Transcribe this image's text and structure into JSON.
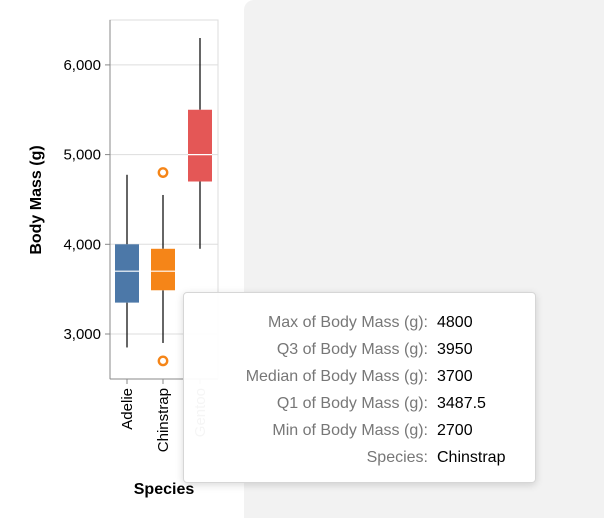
{
  "chart_data": {
    "type": "boxplot",
    "xlabel": "Species",
    "ylabel": "Body Mass (g)",
    "ylim": [
      2450,
      6450
    ],
    "yticks": [
      3000,
      4000,
      5000,
      6000
    ],
    "ytick_labels": [
      "3,000",
      "4,000",
      "5,000",
      "6,000"
    ],
    "grid": true,
    "categories": [
      "Adelie",
      "Chinstrap",
      "Gentoo"
    ],
    "boxes": [
      {
        "species": "Adelie",
        "color": "#4c78a8",
        "min": 2850,
        "q1": 3350,
        "median": 3700,
        "q3": 4000,
        "max": 4775,
        "outliers": []
      },
      {
        "species": "Chinstrap",
        "color": "#f58518",
        "min": 2700,
        "q1": 3487.5,
        "median": 3700,
        "q3": 3950,
        "max": 4800,
        "whisker_low": 2900,
        "whisker_high": 4550,
        "outliers": [
          2700,
          4800
        ]
      },
      {
        "species": "Gentoo",
        "color": "#e45756",
        "min": 3950,
        "q1": 4700,
        "median": 5000,
        "q3": 5500,
        "max": 6300,
        "outliers": []
      }
    ]
  },
  "tooltip": {
    "rows": [
      {
        "key": "Max of Body Mass (g):",
        "value": "4800"
      },
      {
        "key": "Q3 of Body Mass (g):",
        "value": "3950"
      },
      {
        "key": "Median of Body Mass (g):",
        "value": "3700"
      },
      {
        "key": "Q1 of Body Mass (g):",
        "value": "3487.5"
      },
      {
        "key": "Min of Body Mass (g):",
        "value": "2700"
      },
      {
        "key": "Species:",
        "value": "Chinstrap"
      }
    ]
  }
}
